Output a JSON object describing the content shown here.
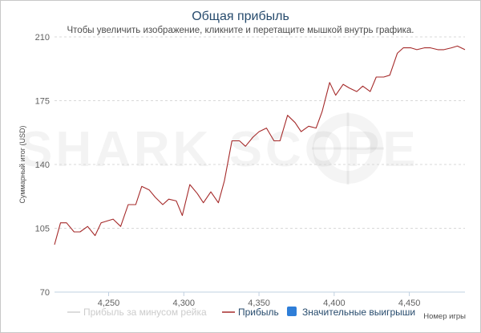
{
  "chart_data": {
    "type": "line",
    "title": "Общая прибыль",
    "subtitle": "Чтобы увеличить изображение, кликните и перетащите мышкой внутрь графика.",
    "ylabel": "Суммарный итог (USD)",
    "xlabel": "Номер игры",
    "ylim": [
      70,
      210
    ],
    "xlim": [
      4214,
      4487
    ],
    "yticks": [
      70,
      105,
      140,
      175,
      210
    ],
    "xticks": [
      4250,
      4300,
      4350,
      4400,
      4450
    ],
    "ytick_labels": [
      "70",
      "105",
      "140",
      "175",
      "210"
    ],
    "xtick_labels": [
      "4,250",
      "4,300",
      "4,350",
      "4,400",
      "4,450"
    ],
    "grid": true,
    "watermark": "SHARK SCOPE",
    "legend": {
      "placement": "bottom",
      "items": [
        {
          "name": "Прибыль за минусом рейка",
          "color": "#d0d0d0",
          "marker": "line",
          "hidden": true
        },
        {
          "name": "Прибыль",
          "color": "#a52a2a",
          "marker": "line"
        },
        {
          "name": "Значительные выигрыши",
          "color": "#2f7ed8",
          "marker": "square"
        }
      ]
    },
    "series": [
      {
        "name": "Прибыль",
        "color": "#a52a2a",
        "x": [
          4214,
          4218,
          4222,
          4227,
          4231,
          4236,
          4241,
          4245,
          4249,
          4253,
          4258,
          4263,
          4268,
          4272,
          4277,
          4281,
          4286,
          4290,
          4295,
          4299,
          4304,
          4309,
          4313,
          4318,
          4323,
          4327,
          4332,
          4337,
          4341,
          4346,
          4350,
          4355,
          4360,
          4364,
          4369,
          4374,
          4378,
          4383,
          4388,
          4392,
          4397,
          4401,
          4406,
          4410,
          4415,
          4419,
          4424,
          4428,
          4433,
          4437,
          4442,
          4446,
          4451,
          4455,
          4460,
          4464,
          4469,
          4473,
          4478,
          4482,
          4487
        ],
        "y": [
          96,
          108,
          108,
          103,
          103,
          106,
          101,
          108,
          109,
          110,
          106,
          118,
          118,
          128,
          126,
          122,
          118,
          121,
          120,
          112,
          129,
          124,
          119,
          125,
          119,
          131,
          153,
          153,
          150,
          155,
          158,
          160,
          153,
          153,
          167,
          163,
          158,
          161,
          160,
          169,
          185,
          178,
          184,
          182,
          180,
          183,
          180,
          188,
          188,
          189,
          201,
          204,
          204,
          203,
          204,
          204,
          203,
          203,
          204,
          205,
          203
        ]
      }
    ]
  }
}
